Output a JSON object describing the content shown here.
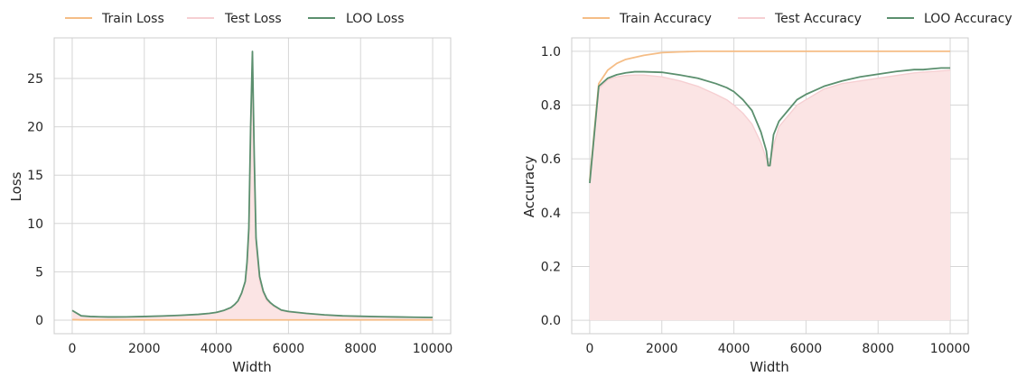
{
  "chart_data": [
    {
      "type": "line",
      "xlabel": "Width",
      "ylabel": "Loss",
      "xlim": [
        -500,
        10500
      ],
      "ylim": [
        -1.4,
        29.2
      ],
      "xticks": [
        0,
        2000,
        4000,
        6000,
        8000,
        10000
      ],
      "yticks": [
        0,
        5,
        10,
        15,
        20,
        25
      ],
      "grid": true,
      "legend": "top",
      "fill_series": "Test Loss",
      "colors": {
        "Train Loss": "#f5bd86",
        "Test Loss": "#f6cfd2",
        "Test Loss fill": "#fbe4e4",
        "LOO Loss": "#5b8f6e"
      },
      "series": [
        {
          "name": "Train Loss",
          "x": [
            0,
            250,
            500,
            1000,
            2000,
            3000,
            4000,
            5000,
            6000,
            8000,
            10000
          ],
          "y": [
            0.05,
            0.03,
            0.02,
            0.02,
            0.02,
            0.02,
            0.02,
            0.02,
            0.02,
            0.02,
            0.02
          ]
        },
        {
          "name": "Test Loss",
          "x": [
            0,
            250,
            500,
            750,
            1000,
            1500,
            2000,
            2500,
            3000,
            3500,
            3800,
            4000,
            4200,
            4400,
            4500,
            4600,
            4700,
            4800,
            4850,
            4900,
            4950,
            5000,
            5050,
            5100,
            5200,
            5300,
            5400,
            5500,
            5600,
            5800,
            6000,
            6500,
            7000,
            7500,
            8000,
            8500,
            9000,
            9500,
            10000
          ],
          "y": [
            1.0,
            0.45,
            0.38,
            0.35,
            0.33,
            0.34,
            0.38,
            0.43,
            0.5,
            0.6,
            0.7,
            0.8,
            1.0,
            1.3,
            1.6,
            2.0,
            2.8,
            4.0,
            5.5,
            9.0,
            18.0,
            27.5,
            16.0,
            8.0,
            4.0,
            2.8,
            2.0,
            1.7,
            1.4,
            1.0,
            0.85,
            0.7,
            0.55,
            0.45,
            0.4,
            0.36,
            0.33,
            0.3,
            0.28
          ]
        },
        {
          "name": "LOO Loss",
          "x": [
            0,
            250,
            500,
            750,
            1000,
            1500,
            2000,
            2500,
            3000,
            3500,
            3800,
            4000,
            4200,
            4400,
            4500,
            4600,
            4700,
            4800,
            4850,
            4900,
            4950,
            5000,
            5050,
            5100,
            5200,
            5300,
            5400,
            5500,
            5600,
            5800,
            6000,
            6500,
            7000,
            7500,
            8000,
            8500,
            9000,
            9500,
            10000
          ],
          "y": [
            1.0,
            0.45,
            0.38,
            0.35,
            0.33,
            0.34,
            0.38,
            0.43,
            0.5,
            0.6,
            0.7,
            0.8,
            1.0,
            1.3,
            1.6,
            2.0,
            2.8,
            4.0,
            6.0,
            9.5,
            20.0,
            27.8,
            17.0,
            8.5,
            4.5,
            3.0,
            2.2,
            1.8,
            1.5,
            1.05,
            0.9,
            0.7,
            0.55,
            0.45,
            0.4,
            0.36,
            0.33,
            0.3,
            0.28
          ]
        }
      ]
    },
    {
      "type": "line",
      "xlabel": "Width",
      "ylabel": "Accuracy",
      "xlim": [
        -500,
        10500
      ],
      "ylim": [
        -0.05,
        1.05
      ],
      "xticks": [
        0,
        2000,
        4000,
        6000,
        8000,
        10000
      ],
      "yticks": [
        0.0,
        0.2,
        0.4,
        0.6,
        0.8,
        1.0
      ],
      "ytick_labels": [
        "0.0",
        "0.2",
        "0.4",
        "0.6",
        "0.8",
        "1.0"
      ],
      "grid": true,
      "legend": "top",
      "fill_series": "Test Accuracy",
      "colors": {
        "Train Accuracy": "#f5bd86",
        "Test Accuracy": "#f6cfd2",
        "Test Accuracy fill": "#fbe4e4",
        "LOO Accuracy": "#5b8f6e"
      },
      "series": [
        {
          "name": "Train Accuracy",
          "x": [
            0,
            250,
            500,
            750,
            1000,
            1500,
            2000,
            2500,
            3000,
            4000,
            5000,
            6000,
            8000,
            10000
          ],
          "y": [
            0.52,
            0.88,
            0.93,
            0.955,
            0.97,
            0.985,
            0.995,
            0.998,
            1.0,
            1.0,
            1.0,
            1.0,
            1.0,
            1.0
          ]
        },
        {
          "name": "Test Accuracy",
          "x": [
            0,
            250,
            500,
            750,
            1000,
            1250,
            1500,
            2000,
            2500,
            3000,
            3500,
            3800,
            4000,
            4250,
            4500,
            4750,
            4900,
            5000,
            5100,
            5250,
            5500,
            5750,
            6000,
            6250,
            6500,
            7000,
            7500,
            8000,
            8500,
            9000,
            9500,
            10000
          ],
          "y": [
            0.51,
            0.86,
            0.895,
            0.905,
            0.91,
            0.912,
            0.912,
            0.905,
            0.89,
            0.87,
            0.84,
            0.82,
            0.8,
            0.77,
            0.73,
            0.66,
            0.6,
            0.58,
            0.65,
            0.72,
            0.76,
            0.8,
            0.82,
            0.84,
            0.86,
            0.88,
            0.89,
            0.9,
            0.91,
            0.92,
            0.925,
            0.93
          ]
        },
        {
          "name": "LOO Accuracy",
          "x": [
            0,
            250,
            500,
            750,
            1000,
            1250,
            1500,
            2000,
            2500,
            3000,
            3500,
            3800,
            4000,
            4250,
            4500,
            4750,
            4900,
            4950,
            5000,
            5100,
            5250,
            5500,
            5750,
            6000,
            6250,
            6500,
            7000,
            7500,
            8000,
            8500,
            9000,
            9250,
            9500,
            9750,
            10000
          ],
          "y": [
            0.51,
            0.87,
            0.9,
            0.913,
            0.92,
            0.924,
            0.924,
            0.922,
            0.912,
            0.9,
            0.88,
            0.865,
            0.85,
            0.82,
            0.78,
            0.7,
            0.63,
            0.575,
            0.575,
            0.69,
            0.74,
            0.78,
            0.82,
            0.84,
            0.855,
            0.87,
            0.89,
            0.905,
            0.915,
            0.925,
            0.932,
            0.932,
            0.935,
            0.938,
            0.938
          ]
        }
      ]
    }
  ]
}
